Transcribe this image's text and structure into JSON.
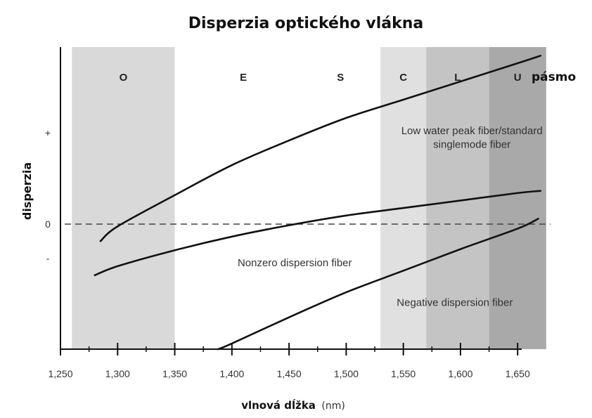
{
  "chart_data": {
    "type": "line",
    "title": "Disperzia optického vlákna",
    "xlabel": "vlnová dĺžka",
    "xlabel_unit": "(nm)",
    "ylabel": "disperzia",
    "x_ticks": [
      1250,
      1300,
      1350,
      1400,
      1450,
      1500,
      1550,
      1600,
      1650
    ],
    "x_tick_labels": [
      "1,250",
      "1,300",
      "1,350",
      "1,400",
      "1,450",
      "1,500",
      "1,550",
      "1,600",
      "1,650"
    ],
    "xlim": [
      1250,
      1680
    ],
    "ylim": [
      -1.1,
      1.6
    ],
    "y_tick_labels": [
      {
        "y": 0.85,
        "label": "+"
      },
      {
        "y": 0,
        "label": "0"
      },
      {
        "y": -0.3,
        "label": "-"
      }
    ],
    "zero_line": {
      "y": 0,
      "style": "dashed"
    },
    "bands_axis_label": "pásmo",
    "bands": [
      {
        "name": "O",
        "x0": 1260,
        "x1": 1350,
        "color": "#d9d9d9"
      },
      {
        "name": "E",
        "x0": 1360,
        "x1": 1460,
        "color": "#ffffff"
      },
      {
        "name": "S",
        "x0": 1460,
        "x1": 1530,
        "color": "#ffffff"
      },
      {
        "name": "C",
        "x0": 1530,
        "x1": 1570,
        "color": "#e0e0e0"
      },
      {
        "name": "L",
        "x0": 1570,
        "x1": 1625,
        "color": "#c4c4c4"
      },
      {
        "name": "U",
        "x0": 1625,
        "x1": 1675,
        "color": "#a9a9a9"
      }
    ],
    "series": [
      {
        "name": "Low water peak fiber/standard singlemode fiber",
        "x": [
          1285,
          1300,
          1350,
          1400,
          1450,
          1500,
          1550,
          1600,
          1650,
          1670
        ],
        "y": [
          -0.15,
          -0.02,
          0.27,
          0.55,
          0.78,
          0.99,
          1.16,
          1.33,
          1.5,
          1.57
        ]
      },
      {
        "name": "Nonzero dispersion fiber",
        "x": [
          1280,
          1300,
          1350,
          1400,
          1450,
          1500,
          1550,
          1600,
          1650,
          1670
        ],
        "y": [
          -0.45,
          -0.37,
          -0.23,
          -0.11,
          -0.01,
          0.08,
          0.15,
          0.22,
          0.29,
          0.31
        ]
      },
      {
        "name": "Negative dispersion fiber",
        "x": [
          1388,
          1400,
          1450,
          1500,
          1550,
          1600,
          1650,
          1668
        ],
        "y": [
          -1.1,
          -1.05,
          -0.82,
          -0.6,
          -0.41,
          -0.22,
          -0.04,
          0.05
        ]
      }
    ],
    "annotations": [
      {
        "text": "Low water peak fiber/standard",
        "x": 1610,
        "y": 0.84
      },
      {
        "text": "singlemode fiber",
        "x": 1610,
        "y": 0.71
      },
      {
        "text": "Nonzero dispersion fiber",
        "x": 1455,
        "y": -0.37
      },
      {
        "text": "Negative dispersion fiber",
        "x": 1595,
        "y": -0.72
      }
    ],
    "legend": "none",
    "grid": false
  }
}
